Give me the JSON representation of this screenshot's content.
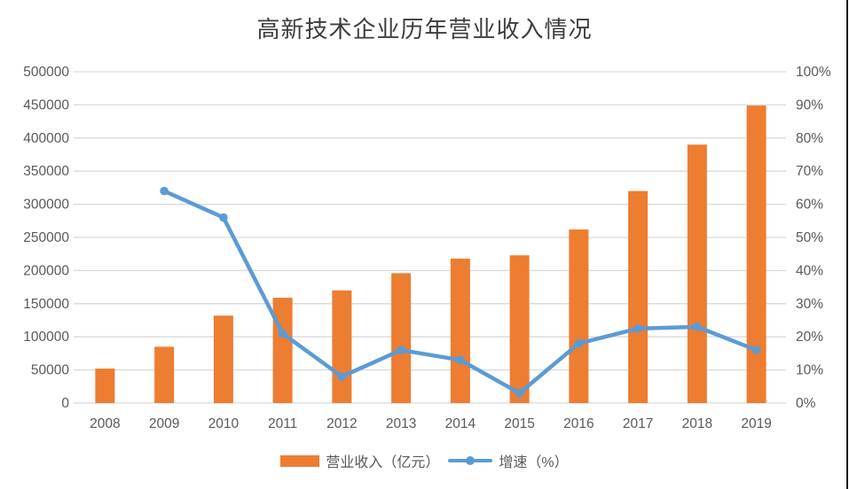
{
  "chart_data": {
    "type": "bar",
    "subtype": "bar-line-combo",
    "title": "高新技术企业历年营业收入情况",
    "categories": [
      "2008",
      "2009",
      "2010",
      "2011",
      "2012",
      "2013",
      "2014",
      "2015",
      "2016",
      "2017",
      "2018",
      "2019"
    ],
    "series": [
      {
        "name": "营业收入（亿元）",
        "type": "bar",
        "axis": "left",
        "color": "#ED7D31",
        "values": [
          52000,
          85000,
          132000,
          159000,
          170000,
          196000,
          218000,
          223000,
          262000,
          320000,
          390000,
          449000
        ]
      },
      {
        "name": "增速（%）",
        "type": "line",
        "axis": "right",
        "color": "#5B9BD5",
        "values": [
          null,
          64,
          56,
          21,
          8,
          16,
          13,
          3,
          18,
          22.5,
          23,
          16
        ]
      }
    ],
    "left_axis": {
      "min": 0,
      "max": 500000,
      "step": 50000,
      "tick_labels": [
        "0",
        "50000",
        "100000",
        "150000",
        "200000",
        "250000",
        "300000",
        "350000",
        "400000",
        "450000",
        "500000"
      ]
    },
    "right_axis": {
      "min": 0,
      "max": 100,
      "step": 10,
      "tick_labels": [
        "0%",
        "10%",
        "20%",
        "30%",
        "40%",
        "50%",
        "60%",
        "70%",
        "80%",
        "90%",
        "100%"
      ]
    },
    "grid": true,
    "gridline_color": "#D9D9D9",
    "axis_label_color": "#595959",
    "legend_position": "bottom"
  }
}
